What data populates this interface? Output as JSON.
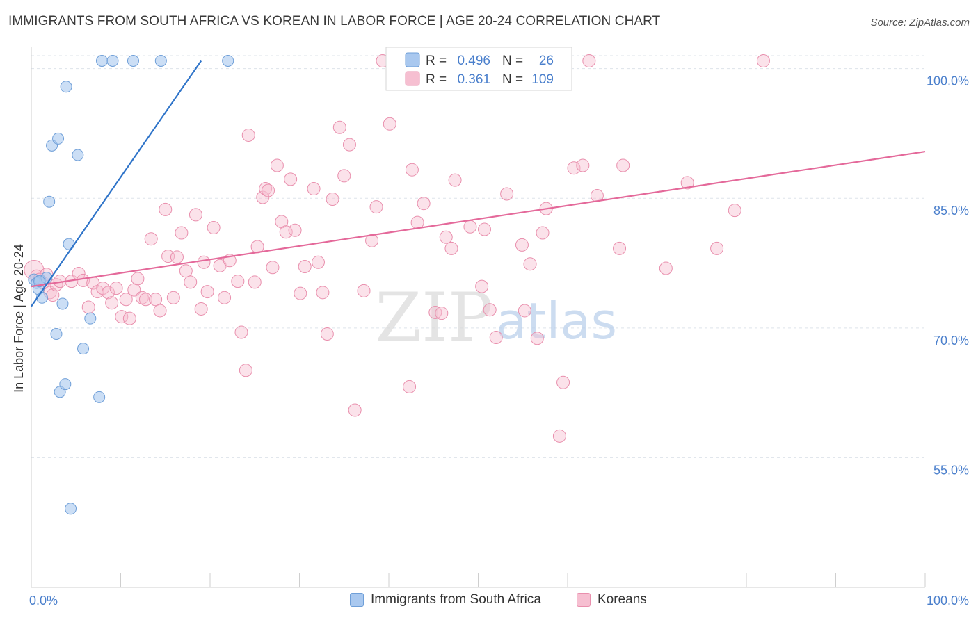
{
  "header": {
    "title": "IMMIGRANTS FROM SOUTH AFRICA VS KOREAN IN LABOR FORCE | AGE 20-24 CORRELATION CHART",
    "source": "Source: ZipAtlas.com"
  },
  "watermark": {
    "zip": "ZIP",
    "atlas": "atlas"
  },
  "colors": {
    "blue_fill": "#a9c8ef",
    "blue_stroke": "#6f9fd8",
    "blue_line": "#2f74c9",
    "pink_fill": "#f6bfd1",
    "pink_stroke": "#e98fad",
    "pink_line": "#e4699a",
    "axis_label": "#4a7fcc",
    "grid": "#dde3ea"
  },
  "legend_box": {
    "rows": [
      {
        "series": "blue",
        "r_label": "R = ",
        "r_value": "0.496",
        "n_label": "N = ",
        "n_value": "26"
      },
      {
        "series": "pink",
        "r_label": "R = ",
        "r_value": "0.361",
        "n_label": "N = ",
        "n_value": "109"
      }
    ]
  },
  "legend_bottom": [
    {
      "series": "blue",
      "label": "Immigrants from South Africa"
    },
    {
      "series": "pink",
      "label": "Koreans"
    }
  ],
  "chart_data": {
    "type": "scatter",
    "title": "IMMIGRANTS FROM SOUTH AFRICA VS KOREAN IN LABOR FORCE | AGE 20-24 CORRELATION CHART",
    "xlabel": "",
    "ylabel": "In Labor Force | Age 20-24",
    "xlim": [
      0,
      100
    ],
    "ylim": [
      40,
      101.5
    ],
    "x_tick_labels": [
      "0.0%",
      "100.0%"
    ],
    "y_ticks": [
      55,
      70,
      85,
      100
    ],
    "y_tick_labels": [
      "55.0%",
      "70.0%",
      "85.0%",
      "100.0%"
    ],
    "grid": true,
    "legend": "top-center",
    "series": [
      {
        "name": "Immigrants from South Africa",
        "color": "blue",
        "R": 0.496,
        "N": 26,
        "trend": {
          "x0": 0.0,
          "y0": 72.5,
          "x1": 19.0,
          "y1": 100.9
        },
        "points": [
          [
            0.3,
            75.6
          ],
          [
            0.6,
            75.2
          ],
          [
            0.8,
            74.5
          ],
          [
            1.0,
            75.5
          ],
          [
            1.2,
            73.5
          ],
          [
            1.7,
            75.8
          ],
          [
            2.0,
            84.6
          ],
          [
            2.3,
            91.1
          ],
          [
            2.8,
            69.3
          ],
          [
            3.0,
            91.9
          ],
          [
            3.2,
            62.6
          ],
          [
            3.5,
            72.8
          ],
          [
            3.8,
            63.5
          ],
          [
            3.9,
            97.9
          ],
          [
            4.2,
            79.7
          ],
          [
            4.4,
            49.1
          ],
          [
            5.2,
            90.0
          ],
          [
            5.8,
            67.6
          ],
          [
            6.6,
            71.1
          ],
          [
            7.6,
            62.0
          ],
          [
            7.9,
            100.9
          ],
          [
            9.1,
            100.9
          ],
          [
            11.4,
            100.9
          ],
          [
            14.5,
            100.9
          ],
          [
            22.0,
            100.9
          ],
          [
            0.9,
            75.4
          ]
        ]
      },
      {
        "name": "Koreans",
        "color": "pink",
        "R": 0.361,
        "N": 109,
        "trend": {
          "x0": 0.0,
          "y0": 74.8,
          "x1": 100.0,
          "y1": 90.4
        },
        "points": [
          [
            0.3,
            76.7
          ],
          [
            0.6,
            76.0
          ],
          [
            0.9,
            75.6
          ],
          [
            1.3,
            75.2
          ],
          [
            1.7,
            76.2
          ],
          [
            2.1,
            74.1
          ],
          [
            2.4,
            73.8
          ],
          [
            2.8,
            75.0
          ],
          [
            3.2,
            75.4
          ],
          [
            4.5,
            75.4
          ],
          [
            5.3,
            76.3
          ],
          [
            5.8,
            75.5
          ],
          [
            6.4,
            72.4
          ],
          [
            6.9,
            75.2
          ],
          [
            7.4,
            74.2
          ],
          [
            8.0,
            74.6
          ],
          [
            8.6,
            74.1
          ],
          [
            9.0,
            72.9
          ],
          [
            9.5,
            74.6
          ],
          [
            10.1,
            71.3
          ],
          [
            10.6,
            73.3
          ],
          [
            11.0,
            71.1
          ],
          [
            11.5,
            74.4
          ],
          [
            11.9,
            75.7
          ],
          [
            12.4,
            73.5
          ],
          [
            12.8,
            73.3
          ],
          [
            13.4,
            80.3
          ],
          [
            13.9,
            73.3
          ],
          [
            14.4,
            72.0
          ],
          [
            15.0,
            83.7
          ],
          [
            15.3,
            78.3
          ],
          [
            15.9,
            73.5
          ],
          [
            16.3,
            78.2
          ],
          [
            16.8,
            81.0
          ],
          [
            17.3,
            76.6
          ],
          [
            17.8,
            75.3
          ],
          [
            18.4,
            83.1
          ],
          [
            19.0,
            72.2
          ],
          [
            19.3,
            77.6
          ],
          [
            19.7,
            74.2
          ],
          [
            20.4,
            81.6
          ],
          [
            21.1,
            77.2
          ],
          [
            21.6,
            73.5
          ],
          [
            22.2,
            77.8
          ],
          [
            23.1,
            75.4
          ],
          [
            23.5,
            69.5
          ],
          [
            24.0,
            65.1
          ],
          [
            24.3,
            92.3
          ],
          [
            25.0,
            75.3
          ],
          [
            25.3,
            79.4
          ],
          [
            25.9,
            85.1
          ],
          [
            26.2,
            86.1
          ],
          [
            26.5,
            85.9
          ],
          [
            27.0,
            77.0
          ],
          [
            27.5,
            88.8
          ],
          [
            28.0,
            82.3
          ],
          [
            28.5,
            81.1
          ],
          [
            29.0,
            87.2
          ],
          [
            29.5,
            81.3
          ],
          [
            30.1,
            74.0
          ],
          [
            30.6,
            77.1
          ],
          [
            31.6,
            86.1
          ],
          [
            32.1,
            77.6
          ],
          [
            32.6,
            74.1
          ],
          [
            33.1,
            69.3
          ],
          [
            33.7,
            84.9
          ],
          [
            34.5,
            93.2
          ],
          [
            35.0,
            87.6
          ],
          [
            35.6,
            91.2
          ],
          [
            36.2,
            60.5
          ],
          [
            37.2,
            74.3
          ],
          [
            38.1,
            80.1
          ],
          [
            38.6,
            84.0
          ],
          [
            39.3,
            100.9
          ],
          [
            40.1,
            93.6
          ],
          [
            42.3,
            63.2
          ],
          [
            42.6,
            88.3
          ],
          [
            43.2,
            82.2
          ],
          [
            43.9,
            84.4
          ],
          [
            45.2,
            71.8
          ],
          [
            45.9,
            71.7
          ],
          [
            46.4,
            80.5
          ],
          [
            47.0,
            79.2
          ],
          [
            47.4,
            87.1
          ],
          [
            49.1,
            81.7
          ],
          [
            50.4,
            74.8
          ],
          [
            50.7,
            81.4
          ],
          [
            51.3,
            72.1
          ],
          [
            52.0,
            68.9
          ],
          [
            53.2,
            85.5
          ],
          [
            54.9,
            79.6
          ],
          [
            55.2,
            72.0
          ],
          [
            55.8,
            77.4
          ],
          [
            56.6,
            68.8
          ],
          [
            57.2,
            81.0
          ],
          [
            57.6,
            83.8
          ],
          [
            59.1,
            57.5
          ],
          [
            59.5,
            63.7
          ],
          [
            60.7,
            88.5
          ],
          [
            61.7,
            88.8
          ],
          [
            62.4,
            100.9
          ],
          [
            63.3,
            85.3
          ],
          [
            65.8,
            79.2
          ],
          [
            66.2,
            88.8
          ],
          [
            71.0,
            76.9
          ],
          [
            73.4,
            86.8
          ],
          [
            76.7,
            79.2
          ],
          [
            78.7,
            83.6
          ],
          [
            81.9,
            100.9
          ]
        ]
      }
    ]
  }
}
